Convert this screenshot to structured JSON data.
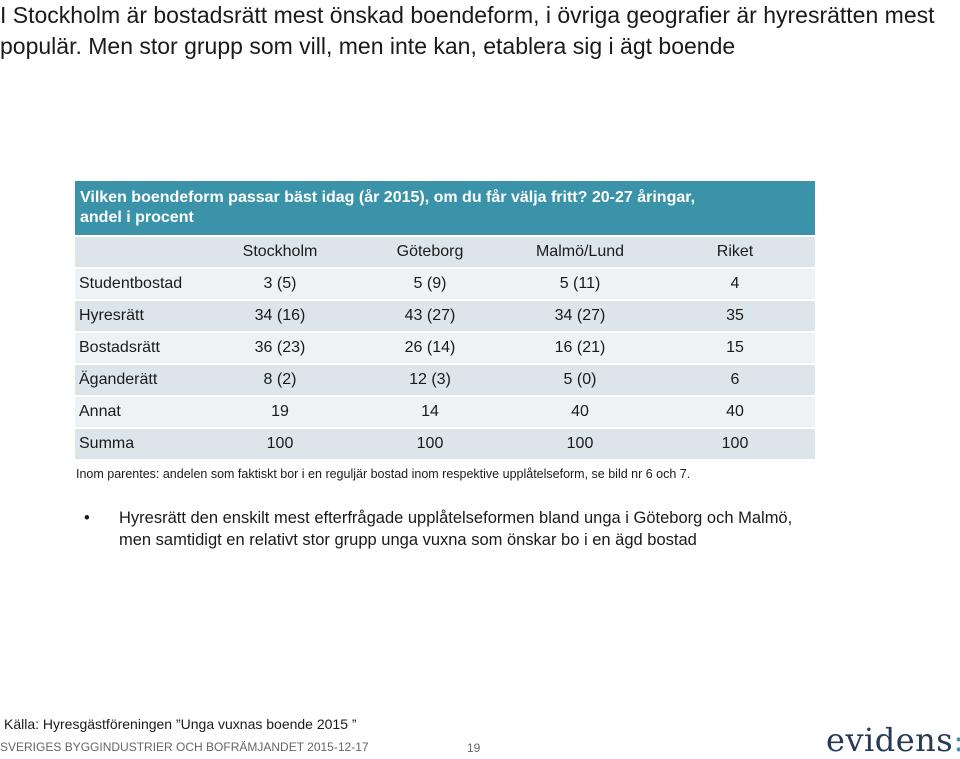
{
  "slide": {
    "title": "I Stockholm är bostadsrätt mest önskad boendeform, i övriga geografier är hyresrätten mest populär. Men stor grupp som vill, men inte kan, etablera sig i ägt boende"
  },
  "table": {
    "header_line1": "Vilken boendeform passar bäst idag (år 2015), om du får välja fritt? 20-27 åringar,",
    "header_line2": "andel i procent",
    "columns": [
      "",
      "Stockholm",
      "Göteborg",
      "Malmö/Lund",
      "Riket"
    ],
    "rows": [
      [
        "Studentbostad",
        "3 (5)",
        "5 (9)",
        "5 (11)",
        "4"
      ],
      [
        "Hyresrätt",
        "34 (16)",
        "43 (27)",
        "34 (27)",
        "35"
      ],
      [
        "Bostadsrätt",
        "36 (23)",
        "26 (14)",
        "16 (21)",
        "15"
      ],
      [
        "Äganderätt",
        "8 (2)",
        "12 (3)",
        "5 (0)",
        "6"
      ],
      [
        "Annat",
        "19",
        "14",
        "40",
        "40"
      ],
      [
        "Summa",
        "100",
        "100",
        "100",
        "100"
      ]
    ]
  },
  "note": "Inom parentes: andelen som faktiskt bor i en reguljär bostad inom respektive upplåtelseform, se bild nr 6 och 7.",
  "bullet": {
    "symbol": "•",
    "text": "Hyresrätt den enskilt mest efterfrågade upplåtelseformen bland unga i Göteborg och Malmö, men samtidigt en relativt stor grupp unga vuxna som önskar bo i en ägd bostad"
  },
  "source": "Källa: Hyresgästföreningen ”Unga vuxnas boende 2015 ”",
  "footer": {
    "org": "SVERIGES BYGGINDUSTRIER OCH BOFRÄMJANDET 2015-12-17",
    "page": "19",
    "logo_text": "evidens",
    "logo_mark": ":"
  },
  "colors": {
    "header_bg": "#3a93a9",
    "row_dark": "#dce6ea",
    "row_light": "#eef2f4",
    "logo": "#243a55"
  }
}
